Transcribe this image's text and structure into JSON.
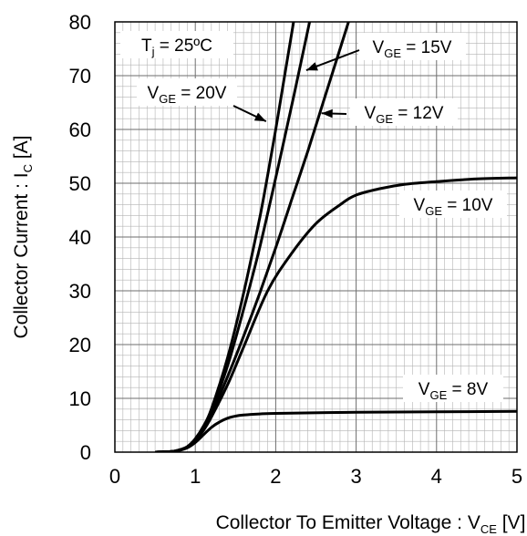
{
  "chart_data": {
    "type": "line",
    "title": "",
    "xlabel": {
      "main": "Collector To Emitter Voltage : V",
      "sub": "CE",
      "unit": " [V]"
    },
    "ylabel": {
      "main": "Collector Current : I",
      "sub": "C",
      "unit": " [A]"
    },
    "xlim": [
      0,
      5
    ],
    "ylim": [
      0,
      80
    ],
    "xticks": [
      0,
      1,
      2,
      3,
      4,
      5
    ],
    "yticks": [
      0,
      10,
      20,
      30,
      40,
      50,
      60,
      70,
      80
    ],
    "grid": "major and minor",
    "condition": {
      "main": "T",
      "sub": "j",
      "rest": " = 25ºC"
    },
    "series": [
      {
        "name": "VGE = 8V",
        "label": {
          "pre": "V",
          "sub": "GE",
          "post": " = 8V"
        },
        "x": [
          0.5,
          0.7,
          0.8,
          0.9,
          1.0,
          1.1,
          1.2,
          1.3,
          1.4,
          1.5,
          1.6,
          1.8,
          2.0,
          3.0,
          4.0,
          5.0
        ],
        "y": [
          0,
          0.1,
          0.3,
          0.8,
          1.8,
          3.2,
          4.6,
          5.6,
          6.3,
          6.7,
          6.9,
          7.1,
          7.2,
          7.4,
          7.5,
          7.6
        ]
      },
      {
        "name": "VGE = 10V",
        "label": {
          "pre": "V",
          "sub": "GE",
          "post": " = 10V"
        },
        "x": [
          0.5,
          0.7,
          0.8,
          0.9,
          1.0,
          1.1,
          1.2,
          1.4,
          1.6,
          1.9,
          2.2,
          2.5,
          2.8,
          3.0,
          3.3,
          3.6,
          4.0,
          4.5,
          5.0
        ],
        "y": [
          0,
          0.1,
          0.4,
          1.0,
          2.2,
          4.0,
          6.5,
          12.5,
          19.5,
          30.0,
          37.0,
          42.5,
          46.0,
          47.8,
          49.0,
          49.8,
          50.3,
          50.8,
          51.0
        ]
      },
      {
        "name": "VGE = 12V",
        "label": {
          "pre": "V",
          "sub": "GE",
          "post": " = 12V"
        },
        "x": [
          0.5,
          0.7,
          0.8,
          0.9,
          1.0,
          1.1,
          1.2,
          1.4,
          1.6,
          1.8,
          2.0,
          2.2,
          2.4,
          2.6,
          2.8
        ],
        "y": [
          0,
          0.1,
          0.4,
          1.0,
          2.3,
          4.3,
          7.0,
          14.0,
          21.5,
          29.5,
          38.0,
          47.0,
          56.0,
          65.5,
          75.0
        ]
      },
      {
        "name": "VGE = 15V",
        "label": {
          "pre": "V",
          "sub": "GE",
          "post": " = 15V"
        },
        "x": [
          0.5,
          0.7,
          0.8,
          0.9,
          1.0,
          1.1,
          1.2,
          1.4,
          1.6,
          1.8,
          2.0,
          2.2,
          2.3
        ],
        "y": [
          0,
          0.1,
          0.4,
          1.0,
          2.4,
          4.6,
          7.6,
          16.0,
          26.5,
          38.0,
          51.0,
          64.5,
          71.5
        ]
      },
      {
        "name": "VGE = 20V",
        "label": {
          "pre": "V",
          "sub": "GE",
          "post": " = 20V"
        },
        "x": [
          0.5,
          0.7,
          0.8,
          0.9,
          1.0,
          1.1,
          1.2,
          1.4,
          1.6,
          1.8,
          1.9,
          2.0,
          2.1
        ],
        "y": [
          0,
          0.1,
          0.4,
          1.0,
          2.5,
          4.8,
          8.0,
          17.5,
          29.5,
          43.5,
          51.5,
          60.0,
          69.0
        ]
      }
    ]
  }
}
